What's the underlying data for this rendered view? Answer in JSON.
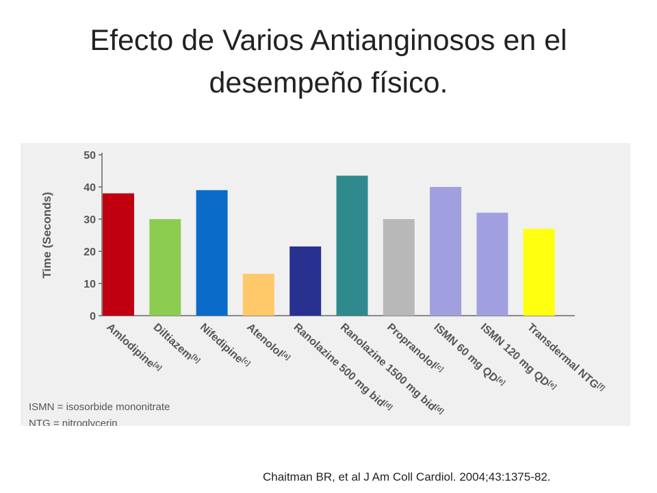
{
  "slide": {
    "title_lines": [
      "Efecto de Varios Antianginosos en el",
      "desempeño físico."
    ],
    "citation": "Chaitman BR, et al J Am Coll Cardiol. 2004;43:1375-82."
  },
  "chart_data": {
    "type": "bar",
    "ylabel": "Time (Seconds)",
    "ylim": [
      0,
      50
    ],
    "yticks": [
      0,
      10,
      20,
      30,
      40,
      50
    ],
    "grid": false,
    "legend": "none",
    "categories": [
      {
        "name": "Amlodipine",
        "ref": "[a]"
      },
      {
        "name": "Diltiazem",
        "ref": "[b]"
      },
      {
        "name": "Nifedipine",
        "ref": "[c]"
      },
      {
        "name": "Atenolol",
        "ref": "[a]"
      },
      {
        "name": "Ranolazine 500 mg bid",
        "ref": "[d]"
      },
      {
        "name": "Ranolazine 1500 mg bid",
        "ref": "[d]"
      },
      {
        "name": "Propranolol",
        "ref": "[c]"
      },
      {
        "name": "ISMN 60 mg QD",
        "ref": "[e]"
      },
      {
        "name": "ISMN 120 mg QD",
        "ref": "[e]"
      },
      {
        "name": "Transdermal NTG",
        "ref": "[f]"
      }
    ],
    "values": [
      38,
      30,
      39,
      13,
      21.5,
      43.5,
      30,
      40,
      32,
      27
    ],
    "colors": [
      "#c00010",
      "#8ccc50",
      "#0a6cc8",
      "#ffc868",
      "#283090",
      "#2f8a8e",
      "#b8b8b8",
      "#a0a0e0",
      "#a0a0e0",
      "#ffff10"
    ],
    "footnotes": [
      "ISMN = isosorbide mononitrate",
      "NTG = nitroglycerin"
    ]
  }
}
